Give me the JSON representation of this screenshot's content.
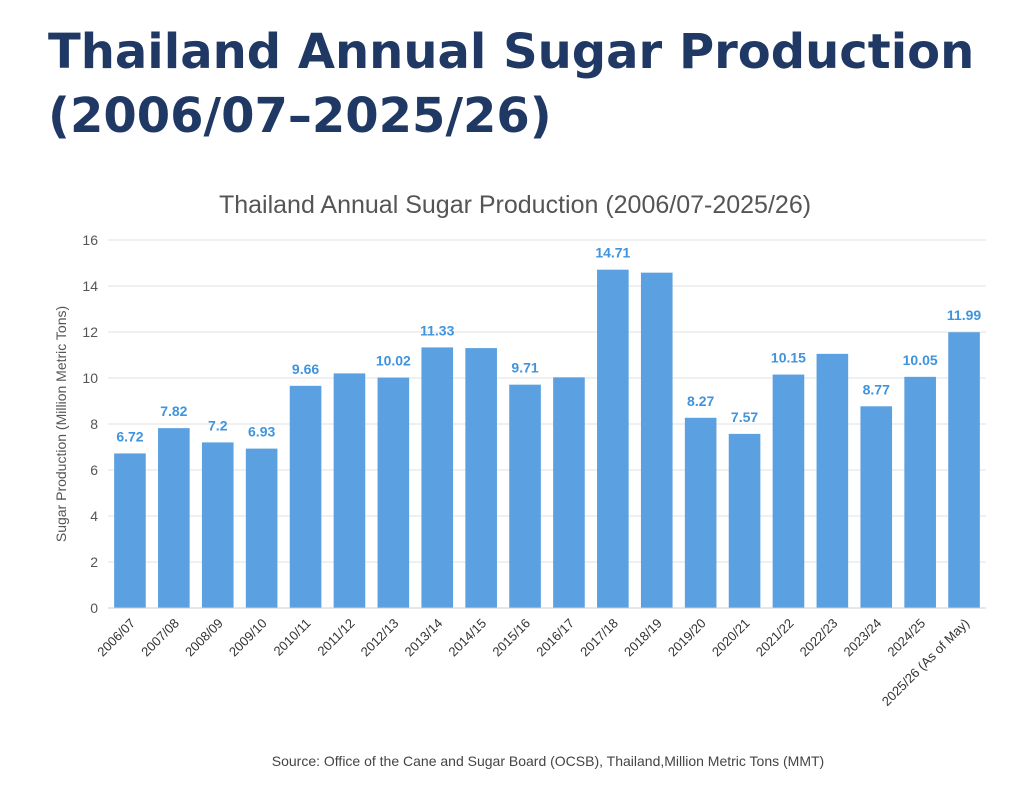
{
  "page": {
    "title_line1": "Thailand Annual Sugar Production",
    "title_line2": "(2006/07–2025/26)"
  },
  "colors": {
    "bar": "#5ba0e0",
    "data_label": "#3f94dd",
    "title": "#1f3864",
    "grid": "#e2e2e2"
  },
  "chart_data": {
    "type": "bar",
    "title": "Thailand Annual Sugar Production (2006/07-2025/26)",
    "ylabel": "Sugar Production (Million Metric Tons)",
    "xlabel": "",
    "ylim": [
      0,
      16
    ],
    "yticks": [
      0,
      2,
      4,
      6,
      8,
      10,
      12,
      14,
      16
    ],
    "grid": true,
    "categories": [
      "2006/07",
      "2007/08",
      "2008/09",
      "2009/10",
      "2010/11",
      "2011/12",
      "2012/13",
      "2013/14",
      "2014/15",
      "2015/16",
      "2016/17",
      "2017/18",
      "2018/19",
      "2019/20",
      "2020/21",
      "2021/22",
      "2022/23",
      "2023/24",
      "2024/25",
      "2025/26  (As of May)"
    ],
    "values": [
      6.72,
      7.82,
      7.2,
      6.93,
      9.66,
      10.2,
      10.02,
      11.33,
      11.3,
      9.71,
      10.03,
      14.71,
      14.58,
      8.27,
      7.57,
      10.15,
      11.05,
      8.77,
      10.05,
      11.99
    ],
    "data_labels": [
      "6.72",
      "7.82",
      "7.2",
      "6.93",
      "9.66",
      "",
      "10.02",
      "11.33",
      "",
      "9.71",
      "",
      "14.71",
      "",
      "8.27",
      "7.57",
      "10.15",
      "",
      "8.77",
      "10.05",
      "11.99"
    ],
    "source": "Source: Office of the Cane and Sugar Board (OCSB), Thailand,Million Metric Tons (MMT)"
  }
}
